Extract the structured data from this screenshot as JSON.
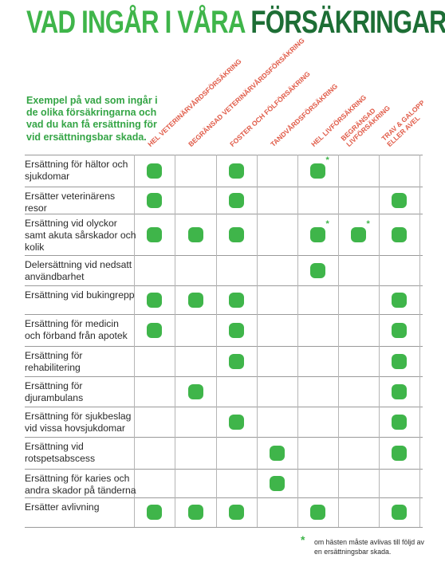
{
  "title": {
    "part1": "VAD INGÅR I VÅRA",
    "part2": "FÖRSÄKRINGAR?"
  },
  "intro": "Exempel på vad som ingår i de olika försäkringarna och vad du kan få ersättning för vid ersättningsbar skada.",
  "columns": [
    [
      "HEL VETERINÄRVÅRDSFÖRSÄKRING"
    ],
    [
      "BEGRÄNSAD VETERINÄRVÅRDSFÖRSÄKRING"
    ],
    [
      "FOSTER OCH FÖLFÖRSÄKRING"
    ],
    [
      "TANDVÅRDSFÖRSÄKRING"
    ],
    [
      "HEL LIVFÖRSÄKRING"
    ],
    [
      "BEGRÄNSAD",
      "LIVFÖRSÄKRING"
    ],
    [
      "TRAV & GALOPP",
      "ELLER AVEL"
    ]
  ],
  "rows": [
    {
      "label": "Ersättning för hältor och sjukdomar",
      "marks": [
        1,
        0,
        1,
        0,
        2,
        0,
        0
      ]
    },
    {
      "label": "Ersätter veterinärens resor",
      "marks": [
        1,
        0,
        1,
        0,
        0,
        0,
        1
      ]
    },
    {
      "label": "Ersättning vid olyckor samt akuta sårskador och kolik",
      "marks": [
        1,
        1,
        1,
        0,
        2,
        2,
        1
      ]
    },
    {
      "label": "Delersättning vid nedsatt användbarhet",
      "marks": [
        0,
        0,
        0,
        0,
        1,
        0,
        0
      ]
    },
    {
      "label": "Ersättning vid bukingrepp",
      "marks": [
        1,
        1,
        1,
        0,
        0,
        0,
        1
      ]
    },
    {
      "label": "Ersättning för medicin och förband från apotek",
      "marks": [
        1,
        0,
        1,
        0,
        0,
        0,
        1
      ]
    },
    {
      "label": "Ersättning för rehabilitering",
      "marks": [
        0,
        0,
        1,
        0,
        0,
        0,
        1
      ]
    },
    {
      "label": "Ersättning för djurambulans",
      "marks": [
        0,
        1,
        0,
        0,
        0,
        0,
        1
      ]
    },
    {
      "label": "Ersättning för sjukbeslag vid vissa hovsjukdomar",
      "marks": [
        0,
        0,
        1,
        0,
        0,
        0,
        1
      ]
    },
    {
      "label": "Ersättning vid rotspetsabscess",
      "marks": [
        0,
        0,
        0,
        1,
        0,
        0,
        1
      ]
    },
    {
      "label": "Ersättning för karies och andra skador på tänderna",
      "marks": [
        0,
        0,
        0,
        1,
        0,
        0,
        0
      ]
    },
    {
      "label": "Ersätter avlivning",
      "marks": [
        1,
        1,
        1,
        0,
        1,
        0,
        1
      ]
    }
  ],
  "footnote": {
    "symbol": "*",
    "text": "om hästen måste avlivas till följd av en ersättningsbar skada."
  },
  "colors": {
    "green": "#3fb54a",
    "dark_green": "#1d6e35",
    "header_red": "#e05a47"
  }
}
